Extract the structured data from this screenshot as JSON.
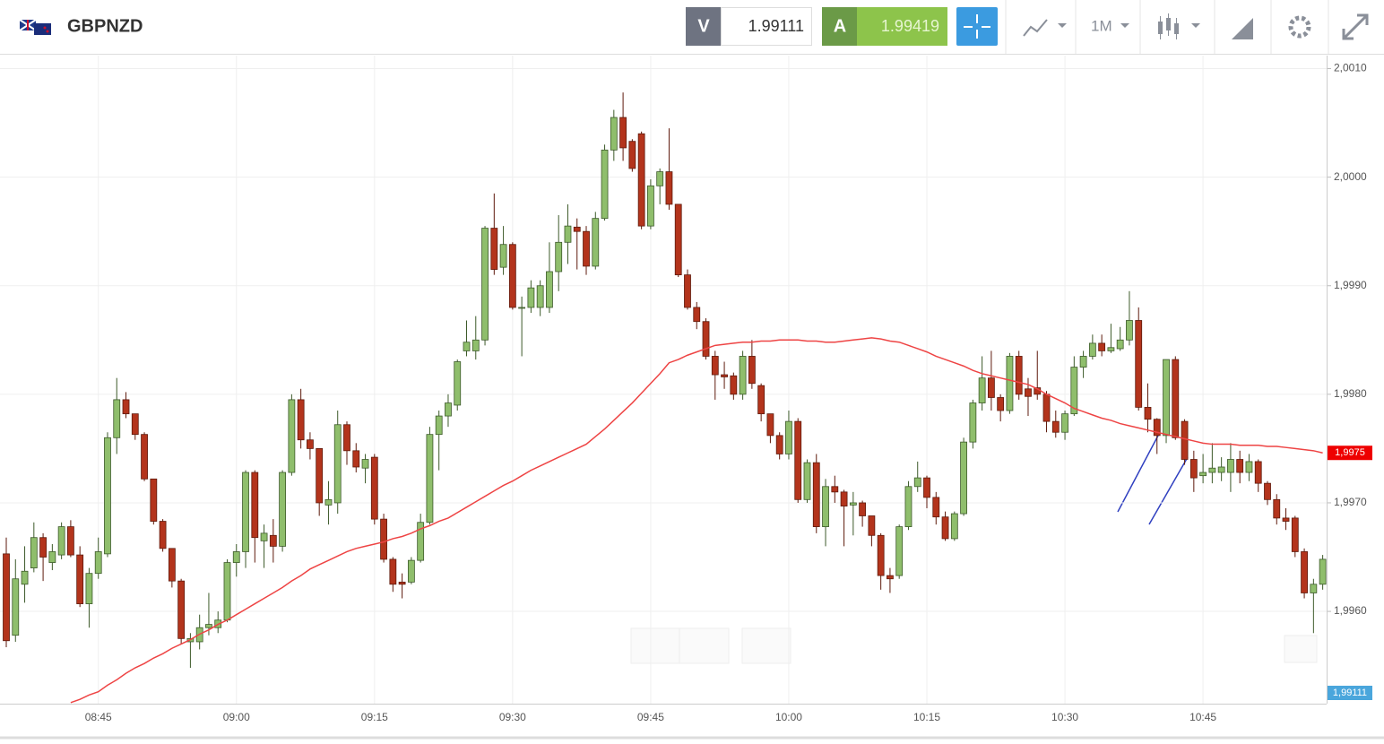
{
  "header": {
    "symbol": "GBPNZD",
    "sell_label": "V",
    "sell_price": "1.99111",
    "buy_label": "A",
    "buy_price": "1.99419",
    "timeframe": "1M"
  },
  "chart_data": {
    "type": "candlestick",
    "categories": [
      null,
      null,
      null,
      null,
      null,
      null,
      null,
      null,
      null,
      null,
      "08:45",
      null,
      null,
      null,
      null,
      null,
      null,
      null,
      null,
      null,
      null,
      null,
      null,
      null,
      null,
      "09:00",
      null,
      null,
      null,
      null,
      null,
      null,
      null,
      null,
      null,
      null,
      null,
      null,
      null,
      null,
      "09:15",
      null,
      null,
      null,
      null,
      null,
      null,
      null,
      null,
      null,
      null,
      null,
      null,
      null,
      null,
      "09:30",
      null,
      null,
      null,
      null,
      null,
      null,
      null,
      null,
      null,
      null,
      null,
      null,
      null,
      null,
      "09:45",
      null,
      null,
      null,
      null,
      null,
      null,
      null,
      null,
      null,
      null,
      null,
      null,
      null,
      null,
      "10:00",
      null,
      null,
      null,
      null,
      null,
      null,
      null,
      null,
      null,
      null,
      null,
      null,
      null,
      null,
      "10:15",
      null,
      null,
      null,
      null,
      null,
      null,
      null,
      null,
      null,
      null,
      null,
      null,
      null,
      null,
      "10:30",
      null,
      null,
      null,
      null,
      null,
      null,
      null,
      null,
      null,
      null,
      null,
      null,
      null,
      null,
      "10:45",
      null,
      null,
      null,
      null,
      null,
      null,
      null,
      null,
      null,
      null,
      null,
      null,
      null
    ],
    "open": [
      1.99653,
      1.99578,
      1.99625,
      1.9964,
      1.99668,
      1.99645,
      1.99652,
      1.99678,
      1.99652,
      1.99607,
      1.99635,
      1.99653,
      1.9976,
      1.99795,
      1.99782,
      1.99763,
      1.99722,
      1.99683,
      1.99658,
      1.99628,
      1.99572,
      1.99572,
      1.99585,
      1.99585,
      1.99592,
      1.99645,
      1.99655,
      1.99728,
      1.99665,
      1.9967,
      1.9966,
      1.99728,
      1.99795,
      1.99758,
      1.9975,
      1.99698,
      1.997,
      1.99772,
      1.99748,
      1.99732,
      1.99742,
      1.99685,
      1.99648,
      1.99627,
      1.99627,
      1.99647,
      1.99682,
      1.99763,
      1.9978,
      1.9979,
      1.9984,
      1.9984,
      1.9985,
      1.99953,
      1.99917,
      1.99938,
      1.9988,
      1.9988,
      1.9988,
      1.9988,
      1.99913,
      1.9994,
      1.99954,
      1.9995,
      1.99918,
      1.99962,
      2.00025,
      2.00055,
      2.00033,
      2.0004,
      1.99955,
      1.99992,
      2.00005,
      1.99975,
      1.9991,
      1.9988,
      1.99867,
      1.99835,
      1.99818,
      1.99817,
      1.998,
      1.99835,
      1.99808,
      1.99782,
      1.99762,
      1.99745,
      1.99775,
      1.99703,
      1.99737,
      1.99678,
      1.99715,
      1.9971,
      1.99698,
      1.997,
      1.99688,
      1.9967,
      1.99633,
      1.99633,
      1.99678,
      1.99715,
      1.99723,
      1.99705,
      1.99687,
      1.99667,
      1.9969,
      1.99756,
      1.99792,
      1.99815,
      1.99797,
      1.99785,
      1.99835,
      1.99805,
      1.99806,
      1.998,
      1.99775,
      1.99765,
      1.99782,
      1.99825,
      1.99835,
      1.99847,
      1.9984,
      1.99842,
      1.9985,
      1.99868,
      1.99788,
      1.99777,
      1.99762,
      1.99832,
      1.99775,
      1.9974,
      1.99725,
      1.99728,
      1.99728,
      1.99728,
      1.9974,
      1.99728,
      1.99738,
      1.99718,
      1.99703,
      1.99686,
      1.99686,
      1.99655,
      1.99617,
      1.99625
    ],
    "high": [
      1.99668,
      1.99648,
      1.9966,
      1.99682,
      1.99672,
      1.99662,
      1.99682,
      1.99684,
      1.9966,
      1.9964,
      1.99668,
      1.99765,
      1.99815,
      1.99802,
      1.99782,
      1.99765,
      1.99722,
      1.99685,
      1.99658,
      1.9963,
      1.9958,
      1.99597,
      1.99617,
      1.996,
      1.99648,
      1.99662,
      1.9973,
      1.9973,
      1.9968,
      1.99685,
      1.9973,
      1.998,
      1.99805,
      1.99765,
      1.9975,
      1.9972,
      1.99785,
      1.99775,
      1.99755,
      1.99745,
      1.99745,
      1.9969,
      1.9965,
      1.99635,
      1.9965,
      1.9969,
      1.9977,
      1.99785,
      1.998,
      1.99832,
      1.99868,
      1.99872,
      1.99955,
      1.99985,
      1.99955,
      1.9994,
      1.9989,
      1.99905,
      1.99905,
      1.9994,
      1.99965,
      1.99975,
      1.99962,
      1.99955,
      1.99968,
      2.0003,
      2.00062,
      2.00078,
      2.00035,
      2.00042,
      1.99998,
      2.00008,
      2.00045,
      1.99975,
      1.99915,
      1.99885,
      1.9987,
      1.9984,
      1.9983,
      1.9982,
      1.9984,
      1.9985,
      1.9981,
      1.99782,
      1.99765,
      1.99785,
      1.99778,
      1.9974,
      1.99745,
      1.99722,
      1.99725,
      1.99712,
      1.9971,
      1.99702,
      1.99688,
      1.99672,
      1.9964,
      1.9968,
      1.9972,
      1.99738,
      1.99725,
      1.9971,
      1.99692,
      1.99692,
      1.9976,
      1.99795,
      1.99835,
      1.9984,
      1.998,
      1.99838,
      1.9984,
      1.99815,
      1.9984,
      1.99803,
      1.99785,
      1.99785,
      1.99835,
      1.9984,
      1.99855,
      1.99855,
      1.99865,
      1.99862,
      1.99895,
      1.9988,
      1.9981,
      1.99778,
      1.99832,
      1.99835,
      1.99777,
      1.99748,
      1.99745,
      1.99755,
      1.99742,
      1.99755,
      1.99748,
      1.99745,
      1.9974,
      1.9972,
      1.99708,
      1.99695,
      1.99688,
      1.99658,
      1.9963,
      1.99652
    ],
    "low": [
      1.99567,
      1.99572,
      1.99608,
      1.99636,
      1.99628,
      1.99638,
      1.99648,
      1.9965,
      1.99604,
      1.99585,
      1.9963,
      1.9965,
      1.99745,
      1.99778,
      1.99758,
      1.9972,
      1.9968,
      1.99655,
      1.99622,
      1.9957,
      1.99548,
      1.99565,
      1.99578,
      1.9958,
      1.9959,
      1.99632,
      1.9964,
      1.99645,
      1.9964,
      1.99645,
      1.99655,
      1.99725,
      1.9975,
      1.9974,
      1.99688,
      1.9968,
      1.9969,
      1.99735,
      1.99728,
      1.99718,
      1.9968,
      1.99645,
      1.99618,
      1.99612,
      1.99625,
      1.99645,
      1.9968,
      1.9973,
      1.9977,
      1.99785,
      1.99835,
      1.99832,
      1.99845,
      1.9991,
      1.9991,
      1.99878,
      1.99835,
      1.99875,
      1.99872,
      1.99875,
      1.99895,
      1.9992,
      1.99915,
      1.9991,
      1.99915,
      1.9996,
      2.00015,
      2.00015,
      2.00005,
      1.99952,
      1.99952,
      1.99975,
      1.9997,
      1.99908,
      1.99878,
      1.9986,
      1.99832,
      1.99795,
      1.99805,
      1.99795,
      1.99795,
      1.99805,
      1.99775,
      1.99755,
      1.9974,
      1.9974,
      1.997,
      1.997,
      1.99672,
      1.9966,
      1.997,
      1.9966,
      1.9967,
      1.99678,
      1.9966,
      1.9962,
      1.99617,
      1.9963,
      1.99675,
      1.9971,
      1.99695,
      1.9968,
      1.99665,
      1.99665,
      1.99688,
      1.9975,
      1.99785,
      1.99785,
      1.99775,
      1.99782,
      1.99795,
      1.9978,
      1.99795,
      1.99765,
      1.9976,
      1.99758,
      1.9978,
      1.99815,
      1.99832,
      1.99835,
      1.99838,
      1.9984,
      1.99845,
      1.99785,
      1.99765,
      1.99745,
      1.99755,
      1.99758,
      1.99735,
      1.9971,
      1.99718,
      1.99718,
      1.9972,
      1.9971,
      1.99718,
      1.9972,
      1.9971,
      1.99698,
      1.9968,
      1.99675,
      1.9965,
      1.99612,
      1.9958,
      1.9962
    ],
    "close": [
      1.99573,
      1.9963,
      1.99637,
      1.99668,
      1.9965,
      1.99655,
      1.99678,
      1.99652,
      1.99607,
      1.99635,
      1.99655,
      1.9976,
      1.99795,
      1.99782,
      1.99763,
      1.99722,
      1.99683,
      1.99658,
      1.99628,
      1.99575,
      1.99575,
      1.99585,
      1.99588,
      1.99592,
      1.99645,
      1.99655,
      1.99728,
      1.99668,
      1.99672,
      1.9966,
      1.99728,
      1.99795,
      1.99758,
      1.9975,
      1.997,
      1.99703,
      1.99772,
      1.99748,
      1.99733,
      1.9974,
      1.99685,
      1.99648,
      1.99625,
      1.99625,
      1.99647,
      1.99682,
      1.99763,
      1.9978,
      1.99792,
      1.9983,
      1.99848,
      1.9985,
      1.99953,
      1.99915,
      1.99938,
      1.9988,
      1.9988,
      1.99898,
      1.999,
      1.99913,
      1.9994,
      1.99955,
      1.9995,
      1.99918,
      1.99962,
      2.00025,
      2.00055,
      2.00027,
      2.00008,
      1.99955,
      1.99992,
      2.00005,
      1.99975,
      1.9991,
      1.9988,
      1.99867,
      1.99835,
      1.99818,
      1.99816,
      1.998,
      1.99835,
      1.9981,
      1.99782,
      1.99762,
      1.99745,
      1.99775,
      1.99703,
      1.99737,
      1.99678,
      1.99715,
      1.9971,
      1.99697,
      1.997,
      1.99688,
      1.9967,
      1.99633,
      1.9963,
      1.99678,
      1.99715,
      1.99723,
      1.99705,
      1.99687,
      1.99667,
      1.9969,
      1.99756,
      1.99792,
      1.99815,
      1.99797,
      1.99785,
      1.99835,
      1.998,
      1.99798,
      1.998,
      1.99775,
      1.99765,
      1.99782,
      1.99825,
      1.99835,
      1.99847,
      1.9984,
      1.99843,
      1.9985,
      1.99868,
      1.99788,
      1.99777,
      1.99762,
      1.99832,
      1.9976,
      1.9974,
      1.99723,
      1.99728,
      1.99732,
      1.99733,
      1.9974,
      1.99728,
      1.99738,
      1.99718,
      1.99703,
      1.99686,
      1.99683,
      1.99655,
      1.99617,
      1.99625,
      1.99648
    ],
    "up_color": "#8fbe6c",
    "down_color": "#b3341c",
    "ma": {
      "color": "#ee4444",
      "values": [
        null,
        null,
        null,
        null,
        null,
        null,
        null,
        1.99516,
        1.99519,
        1.99523,
        1.99526,
        1.99532,
        1.99537,
        1.99543,
        1.99548,
        1.99552,
        1.99557,
        1.99561,
        1.99566,
        1.9957,
        1.99574,
        1.99579,
        1.99583,
        1.99588,
        1.99592,
        1.99597,
        1.99602,
        1.99607,
        1.99612,
        1.99617,
        1.99622,
        1.99628,
        1.99633,
        1.99639,
        1.99643,
        1.99647,
        1.99651,
        1.99655,
        1.99658,
        1.9966,
        1.99662,
        1.99664,
        1.99667,
        1.99669,
        1.99672,
        1.99676,
        1.99679,
        1.99683,
        1.99686,
        1.99691,
        1.99696,
        1.99701,
        1.99706,
        1.99711,
        1.99716,
        1.9972,
        1.99725,
        1.9973,
        1.99734,
        1.99738,
        1.99742,
        1.99746,
        1.9975,
        1.99754,
        1.99761,
        1.99768,
        1.99776,
        1.99784,
        1.99792,
        1.99801,
        1.9981,
        1.99819,
        1.99829,
        1.99832,
        1.99836,
        1.99839,
        1.99842,
        1.99845,
        1.99846,
        1.99847,
        1.99848,
        1.99848,
        1.99849,
        1.99849,
        1.9985,
        1.9985,
        1.9985,
        1.99849,
        1.99849,
        1.99848,
        1.99848,
        1.99849,
        1.9985,
        1.99851,
        1.99852,
        1.99851,
        1.99849,
        1.99848,
        1.99845,
        1.99842,
        1.99839,
        1.99835,
        1.99832,
        1.99829,
        1.99826,
        1.99822,
        1.99819,
        1.99817,
        1.99815,
        1.99813,
        1.99811,
        1.99809,
        1.99805,
        1.998,
        1.99796,
        1.99792,
        1.99787,
        1.99784,
        1.99781,
        1.99778,
        1.99776,
        1.99773,
        1.99771,
        1.99769,
        1.99767,
        1.99765,
        1.99763,
        1.99761,
        1.99759,
        1.99757,
        1.99755,
        1.99754,
        1.99754,
        1.99754,
        1.99753,
        1.99753,
        1.99753,
        1.99752,
        1.99752,
        1.99751,
        1.9975,
        1.99749,
        1.99748,
        1.99746
      ]
    },
    "ylim": [
      1.99515,
      2.00112
    ],
    "yticks": [
      {
        "value": 1.996,
        "label": "1,9960"
      },
      {
        "value": 1.997,
        "label": "1,9970"
      },
      {
        "value": 1.998,
        "label": "1,9980"
      },
      {
        "value": 1.999,
        "label": "1,9990"
      },
      {
        "value": 2.0,
        "label": "2,0000"
      },
      {
        "value": 2.001,
        "label": "2,0010"
      }
    ],
    "grid": true,
    "price_tags": [
      {
        "label": "1,9975",
        "color": "#ee0000"
      },
      {
        "label": "1,99111",
        "color": "#4aa6dc"
      }
    ]
  }
}
